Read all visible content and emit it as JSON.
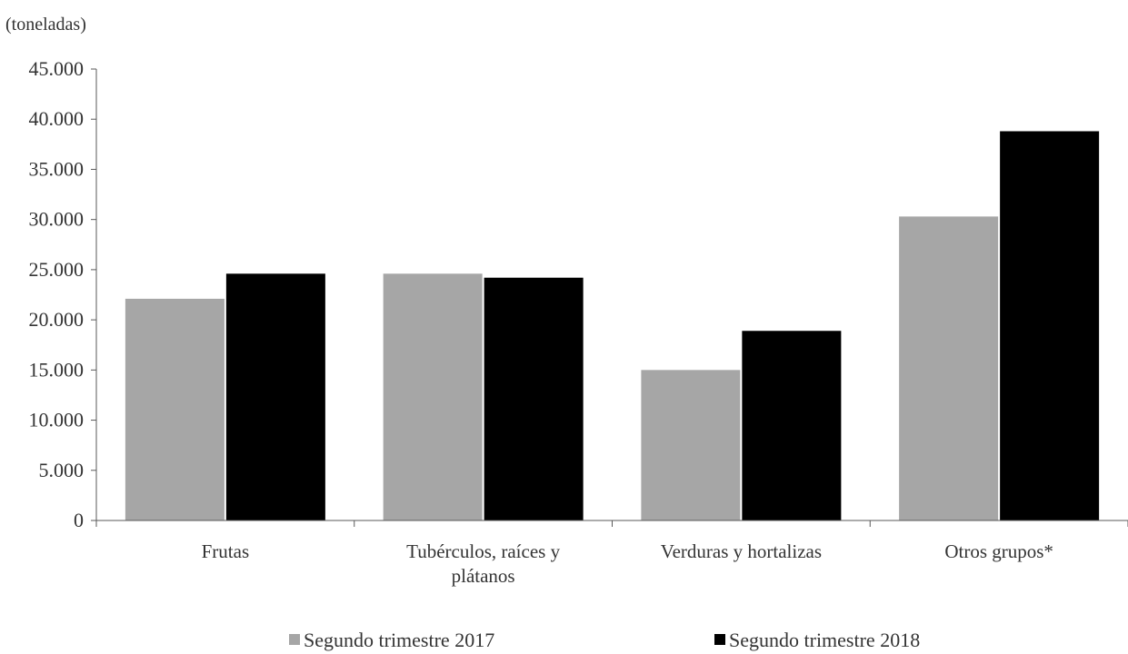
{
  "chart_data": {
    "type": "bar",
    "unit_label": "(toneladas)",
    "categories": [
      [
        "Frutas"
      ],
      [
        "Tubérculos, raíces y",
        "plátanos"
      ],
      [
        "Verduras y hortalizas"
      ],
      [
        "Otros grupos*"
      ]
    ],
    "series": [
      {
        "name": "Segundo trimestre 2017",
        "color": "#a6a6a6",
        "values": [
          22100,
          24600,
          15000,
          30300
        ]
      },
      {
        "name": "Segundo trimestre 2018",
        "color": "#000000",
        "values": [
          24600,
          24200,
          18900,
          38800
        ]
      }
    ],
    "ylim": [
      0,
      45000
    ],
    "yticks": [
      0,
      5000,
      10000,
      15000,
      20000,
      25000,
      30000,
      35000,
      40000,
      45000
    ],
    "ytick_labels": [
      "0",
      "5.000",
      "10.000",
      "15.000",
      "20.000",
      "25.000",
      "30.000",
      "35.000",
      "40.000",
      "45.000"
    ],
    "grid": false,
    "legend_position": "bottom"
  }
}
